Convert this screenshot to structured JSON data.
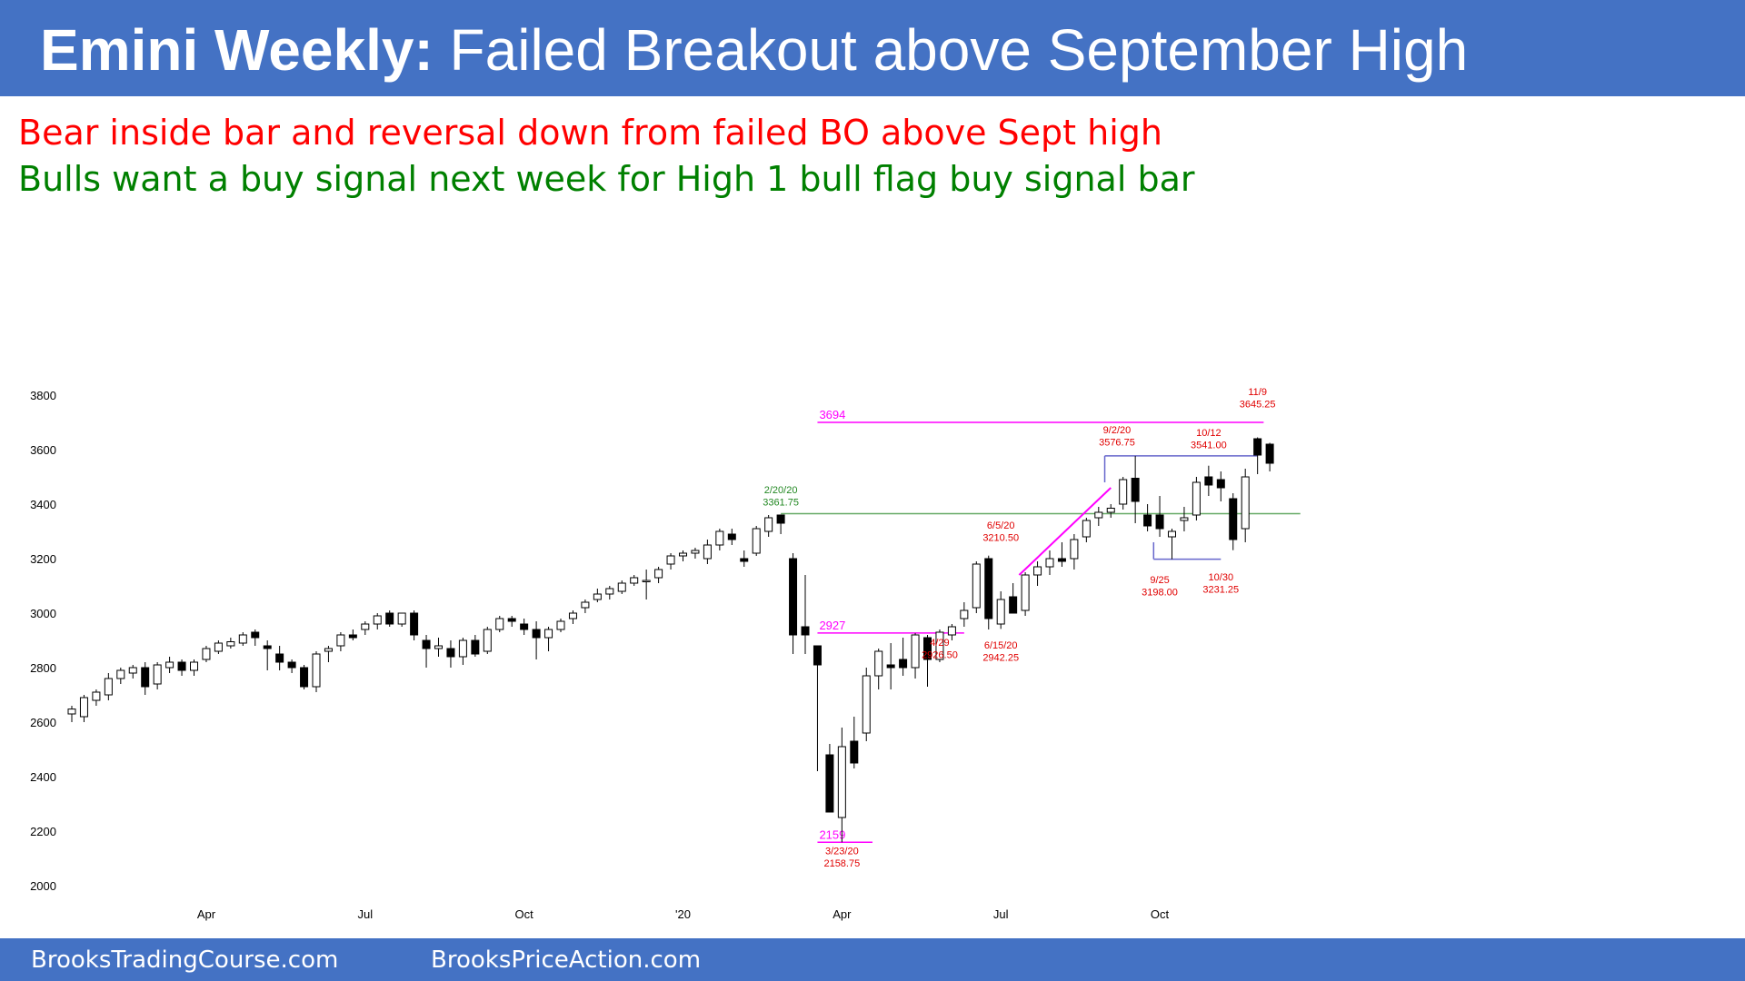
{
  "header": {
    "title_bold": "Emini Weekly:",
    "title_rest": " Failed Breakout above September High"
  },
  "notes": {
    "line1": "Bear inside bar and reversal down from failed BO above Sept high",
    "line2": "Bulls want a buy signal next week for High 1 bull flag buy signal bar"
  },
  "footer": {
    "link1": "BrooksTradingCourse.com",
    "link2": "BrooksPriceAction.com"
  },
  "colors": {
    "band": "#4472c4",
    "bear_text": "#ff0000",
    "bull_text": "#008000",
    "magenta": "#ff00ff",
    "support_green": "#66aa66",
    "range_blue": "#6666cc",
    "label_red": "#e00000",
    "label_green": "#228822"
  },
  "chart_data": {
    "type": "candlestick",
    "ylim": [
      2000,
      3800
    ],
    "yticks": [
      2000,
      2200,
      2400,
      2600,
      2800,
      3000,
      3200,
      3400,
      3600,
      3800
    ],
    "xticks": [
      {
        "week": 11,
        "label": "Apr"
      },
      {
        "week": 24,
        "label": "Jul"
      },
      {
        "week": 37,
        "label": "Oct"
      },
      {
        "week": 50,
        "label": "'20"
      },
      {
        "week": 63,
        "label": "Apr"
      },
      {
        "week": 76,
        "label": "Jul"
      },
      {
        "week": 89,
        "label": "Oct"
      }
    ],
    "candles": [
      {
        "o": 2630,
        "h": 2660,
        "l": 2600,
        "c": 2648
      },
      {
        "o": 2620,
        "h": 2700,
        "l": 2600,
        "c": 2690
      },
      {
        "o": 2680,
        "h": 2720,
        "l": 2660,
        "c": 2710
      },
      {
        "o": 2700,
        "h": 2780,
        "l": 2680,
        "c": 2760
      },
      {
        "o": 2760,
        "h": 2800,
        "l": 2740,
        "c": 2790
      },
      {
        "o": 2780,
        "h": 2810,
        "l": 2760,
        "c": 2800
      },
      {
        "o": 2800,
        "h": 2820,
        "l": 2700,
        "c": 2730
      },
      {
        "o": 2740,
        "h": 2820,
        "l": 2720,
        "c": 2810
      },
      {
        "o": 2800,
        "h": 2840,
        "l": 2780,
        "c": 2820
      },
      {
        "o": 2820,
        "h": 2830,
        "l": 2770,
        "c": 2790
      },
      {
        "o": 2790,
        "h": 2830,
        "l": 2770,
        "c": 2820
      },
      {
        "o": 2830,
        "h": 2880,
        "l": 2820,
        "c": 2870
      },
      {
        "o": 2860,
        "h": 2900,
        "l": 2850,
        "c": 2890
      },
      {
        "o": 2880,
        "h": 2910,
        "l": 2870,
        "c": 2895
      },
      {
        "o": 2890,
        "h": 2930,
        "l": 2880,
        "c": 2920
      },
      {
        "o": 2930,
        "h": 2940,
        "l": 2880,
        "c": 2910
      },
      {
        "o": 2880,
        "h": 2900,
        "l": 2790,
        "c": 2870
      },
      {
        "o": 2850,
        "h": 2880,
        "l": 2790,
        "c": 2820
      },
      {
        "o": 2820,
        "h": 2830,
        "l": 2780,
        "c": 2800
      },
      {
        "o": 2800,
        "h": 2810,
        "l": 2720,
        "c": 2730
      },
      {
        "o": 2730,
        "h": 2860,
        "l": 2710,
        "c": 2850
      },
      {
        "o": 2860,
        "h": 2880,
        "l": 2820,
        "c": 2870
      },
      {
        "o": 2880,
        "h": 2930,
        "l": 2860,
        "c": 2920
      },
      {
        "o": 2920,
        "h": 2940,
        "l": 2900,
        "c": 2910
      },
      {
        "o": 2940,
        "h": 2970,
        "l": 2920,
        "c": 2960
      },
      {
        "o": 2960,
        "h": 3000,
        "l": 2940,
        "c": 2990
      },
      {
        "o": 3000,
        "h": 3010,
        "l": 2950,
        "c": 2960
      },
      {
        "o": 2960,
        "h": 3000,
        "l": 2950,
        "c": 3000
      },
      {
        "o": 3000,
        "h": 3010,
        "l": 2900,
        "c": 2920
      },
      {
        "o": 2900,
        "h": 2920,
        "l": 2800,
        "c": 2870
      },
      {
        "o": 2870,
        "h": 2910,
        "l": 2840,
        "c": 2880
      },
      {
        "o": 2870,
        "h": 2900,
        "l": 2800,
        "c": 2840
      },
      {
        "o": 2840,
        "h": 2910,
        "l": 2810,
        "c": 2900
      },
      {
        "o": 2900,
        "h": 2920,
        "l": 2840,
        "c": 2850
      },
      {
        "o": 2860,
        "h": 2950,
        "l": 2850,
        "c": 2940
      },
      {
        "o": 2940,
        "h": 2990,
        "l": 2930,
        "c": 2980
      },
      {
        "o": 2980,
        "h": 2990,
        "l": 2950,
        "c": 2970
      },
      {
        "o": 2960,
        "h": 2980,
        "l": 2920,
        "c": 2940
      },
      {
        "o": 2940,
        "h": 2970,
        "l": 2830,
        "c": 2910
      },
      {
        "o": 2910,
        "h": 2950,
        "l": 2860,
        "c": 2940
      },
      {
        "o": 2940,
        "h": 2980,
        "l": 2930,
        "c": 2970
      },
      {
        "o": 2980,
        "h": 3010,
        "l": 2960,
        "c": 3000
      },
      {
        "o": 3020,
        "h": 3050,
        "l": 3000,
        "c": 3040
      },
      {
        "o": 3050,
        "h": 3090,
        "l": 3040,
        "c": 3070
      },
      {
        "o": 3070,
        "h": 3100,
        "l": 3050,
        "c": 3090
      },
      {
        "o": 3080,
        "h": 3120,
        "l": 3070,
        "c": 3110
      },
      {
        "o": 3110,
        "h": 3140,
        "l": 3100,
        "c": 3130
      },
      {
        "o": 3120,
        "h": 3160,
        "l": 3050,
        "c": 3120
      },
      {
        "o": 3130,
        "h": 3170,
        "l": 3110,
        "c": 3160
      },
      {
        "o": 3180,
        "h": 3220,
        "l": 3160,
        "c": 3210
      },
      {
        "o": 3210,
        "h": 3230,
        "l": 3190,
        "c": 3220
      },
      {
        "o": 3220,
        "h": 3240,
        "l": 3200,
        "c": 3230
      },
      {
        "o": 3200,
        "h": 3270,
        "l": 3180,
        "c": 3250
      },
      {
        "o": 3250,
        "h": 3310,
        "l": 3230,
        "c": 3300
      },
      {
        "o": 3290,
        "h": 3310,
        "l": 3250,
        "c": 3270
      },
      {
        "o": 3200,
        "h": 3230,
        "l": 3170,
        "c": 3190
      },
      {
        "o": 3220,
        "h": 3320,
        "l": 3210,
        "c": 3310
      },
      {
        "o": 3300,
        "h": 3360,
        "l": 3280,
        "c": 3350
      },
      {
        "o": 3360,
        "h": 3362,
        "l": 3290,
        "c": 3330
      },
      {
        "o": 3200,
        "h": 3220,
        "l": 2850,
        "c": 2920
      },
      {
        "o": 2950,
        "h": 3140,
        "l": 2850,
        "c": 2920
      },
      {
        "o": 2880,
        "h": 2880,
        "l": 2420,
        "c": 2810
      },
      {
        "o": 2480,
        "h": 2520,
        "l": 2270,
        "c": 2270
      },
      {
        "o": 2250,
        "h": 2580,
        "l": 2159,
        "c": 2510
      },
      {
        "o": 2530,
        "h": 2620,
        "l": 2430,
        "c": 2450
      },
      {
        "o": 2560,
        "h": 2800,
        "l": 2530,
        "c": 2770
      },
      {
        "o": 2770,
        "h": 2870,
        "l": 2720,
        "c": 2860
      },
      {
        "o": 2810,
        "h": 2890,
        "l": 2720,
        "c": 2800
      },
      {
        "o": 2830,
        "h": 2910,
        "l": 2770,
        "c": 2800
      },
      {
        "o": 2800,
        "h": 2927,
        "l": 2760,
        "c": 2920
      },
      {
        "o": 2910,
        "h": 2920,
        "l": 2730,
        "c": 2830
      },
      {
        "o": 2830,
        "h": 2940,
        "l": 2820,
        "c": 2930
      },
      {
        "o": 2920,
        "h": 2960,
        "l": 2900,
        "c": 2950
      },
      {
        "o": 2980,
        "h": 3040,
        "l": 2950,
        "c": 3010
      },
      {
        "o": 3020,
        "h": 3190,
        "l": 3000,
        "c": 3180
      },
      {
        "o": 3200,
        "h": 3211,
        "l": 2940,
        "c": 2980
      },
      {
        "o": 2960,
        "h": 3080,
        "l": 2942,
        "c": 3050
      },
      {
        "o": 3060,
        "h": 3110,
        "l": 3000,
        "c": 3000
      },
      {
        "o": 3010,
        "h": 3150,
        "l": 2990,
        "c": 3140
      },
      {
        "o": 3140,
        "h": 3190,
        "l": 3100,
        "c": 3170
      },
      {
        "o": 3170,
        "h": 3230,
        "l": 3140,
        "c": 3200
      },
      {
        "o": 3200,
        "h": 3260,
        "l": 3170,
        "c": 3190
      },
      {
        "o": 3200,
        "h": 3290,
        "l": 3160,
        "c": 3270
      },
      {
        "o": 3280,
        "h": 3350,
        "l": 3260,
        "c": 3340
      },
      {
        "o": 3350,
        "h": 3390,
        "l": 3320,
        "c": 3370
      },
      {
        "o": 3370,
        "h": 3400,
        "l": 3350,
        "c": 3385
      },
      {
        "o": 3400,
        "h": 3500,
        "l": 3380,
        "c": 3490
      },
      {
        "o": 3495,
        "h": 3577,
        "l": 3330,
        "c": 3410
      },
      {
        "o": 3360,
        "h": 3400,
        "l": 3300,
        "c": 3320
      },
      {
        "o": 3360,
        "h": 3430,
        "l": 3280,
        "c": 3310
      },
      {
        "o": 3280,
        "h": 3310,
        "l": 3198,
        "c": 3300
      },
      {
        "o": 3340,
        "h": 3390,
        "l": 3300,
        "c": 3350
      },
      {
        "o": 3360,
        "h": 3500,
        "l": 3340,
        "c": 3480
      },
      {
        "o": 3500,
        "h": 3541,
        "l": 3430,
        "c": 3470
      },
      {
        "o": 3490,
        "h": 3520,
        "l": 3410,
        "c": 3460
      },
      {
        "o": 3420,
        "h": 3440,
        "l": 3231,
        "c": 3270
      },
      {
        "o": 3310,
        "h": 3530,
        "l": 3260,
        "c": 3500
      },
      {
        "o": 3640,
        "h": 3645,
        "l": 3510,
        "c": 3580
      },
      {
        "o": 3620,
        "h": 3625,
        "l": 3520,
        "c": 3550
      }
    ],
    "lines": [
      {
        "name": "resistance-3694",
        "x0": 61,
        "x1": 97.5,
        "y": 3700,
        "color": "magenta",
        "label": "3694"
      },
      {
        "name": "support-2927",
        "x0": 61,
        "x1": 73,
        "y": 2927,
        "color": "magenta",
        "label": "2927"
      },
      {
        "name": "low-2159",
        "x0": 61,
        "x1": 65.5,
        "y": 2159,
        "color": "magenta",
        "label": "2159"
      },
      {
        "name": "feb-high-line",
        "x0": 58,
        "x1": 100.5,
        "y": 3365,
        "color": "support_green"
      },
      {
        "name": "sept-high-line",
        "x0": 84.5,
        "x1": 97,
        "y": 3577,
        "color": "range_blue"
      },
      {
        "name": "sept-low-line",
        "x0": 88.5,
        "x1": 94,
        "y": 3198,
        "color": "range_blue"
      }
    ],
    "trendlines": [
      {
        "name": "bull-trendline",
        "x0": 77.5,
        "y0": 3140,
        "x1": 85,
        "y1": 3460,
        "color": "magenta"
      }
    ],
    "vlines": [
      {
        "name": "sept-range-left",
        "x": 84.5,
        "y0": 3577,
        "y1": 3480,
        "color": "range_blue"
      },
      {
        "name": "sept-low-left",
        "x": 88.5,
        "y0": 3198,
        "y1": 3260,
        "color": "range_blue"
      }
    ],
    "annotations": [
      {
        "x": 58,
        "y1": 3440,
        "y2": 3395,
        "t1": "2/20/20",
        "t2": "3361.75",
        "color": "label_green",
        "anchor": "middle"
      },
      {
        "x": 71,
        "y1": 2880,
        "y2": 2835,
        "t1": "4/29",
        "t2": "2926.50",
        "color": "label_red",
        "anchor": "middle"
      },
      {
        "x": 76,
        "y1": 3310,
        "y2": 3265,
        "t1": "6/5/20",
        "t2": "3210.50",
        "color": "label_red",
        "anchor": "middle"
      },
      {
        "x": 76,
        "y1": 2870,
        "y2": 2825,
        "t1": "6/15/20",
        "t2": "2942.25",
        "color": "label_red",
        "anchor": "middle"
      },
      {
        "x": 63,
        "y1": 2115,
        "y2": 2070,
        "t1": "3/23/20",
        "t2": "2158.75",
        "color": "label_red",
        "anchor": "middle"
      },
      {
        "x": 85.5,
        "y1": 3660,
        "y2": 3615,
        "t1": "9/2/20",
        "t2": "3576.75",
        "color": "label_red",
        "anchor": "middle"
      },
      {
        "x": 89,
        "y1": 3110,
        "y2": 3065,
        "t1": "9/25",
        "t2": "3198.00",
        "color": "label_red",
        "anchor": "middle"
      },
      {
        "x": 93,
        "y1": 3650,
        "y2": 3605,
        "t1": "10/12",
        "t2": "3541.00",
        "color": "label_red",
        "anchor": "middle"
      },
      {
        "x": 94,
        "y1": 3120,
        "y2": 3075,
        "t1": "10/30",
        "t2": "3231.25",
        "color": "label_red",
        "anchor": "middle"
      },
      {
        "x": 97,
        "y1": 3800,
        "y2": 3755,
        "t1": "11/9",
        "t2": "3645.25",
        "color": "label_red",
        "anchor": "middle"
      }
    ]
  }
}
